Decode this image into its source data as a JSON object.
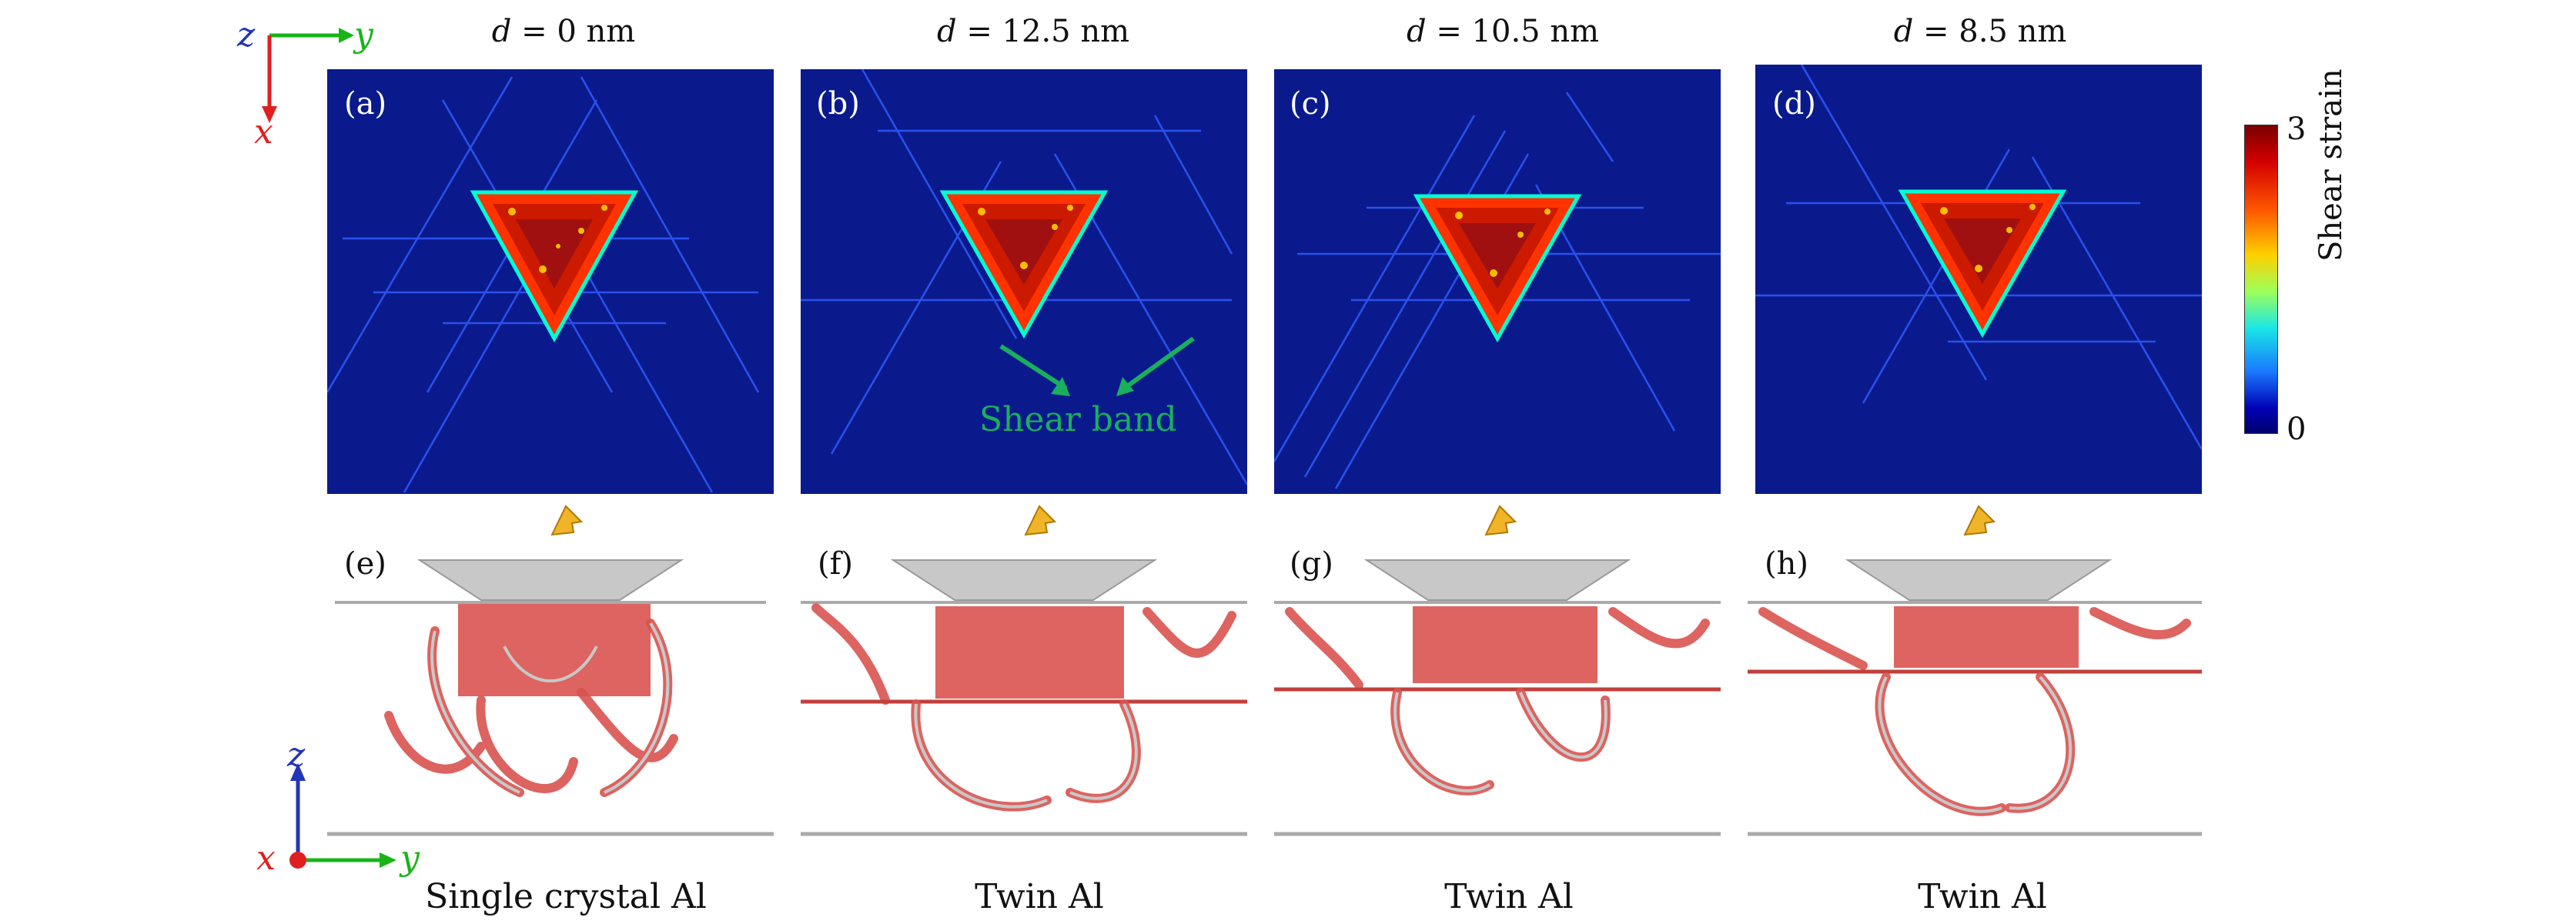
{
  "columns": [
    {
      "title_var": "d",
      "title_val": "= 0 nm",
      "top_label": "(a)",
      "bottom_label": "(e)",
      "caption": "Single crystal Al"
    },
    {
      "title_var": "d",
      "title_val": "= 12.5 nm",
      "top_label": "(b)",
      "bottom_label": "(f)",
      "caption": "Twin Al"
    },
    {
      "title_var": "d",
      "title_val": "= 10.5 nm",
      "top_label": "(c)",
      "bottom_label": "(g)",
      "caption": "Twin Al"
    },
    {
      "title_var": "d",
      "title_val": "= 8.5 nm",
      "top_label": "(d)",
      "bottom_label": "(h)",
      "caption": "Twin Al"
    }
  ],
  "annotation": {
    "shear_band": "Shear band"
  },
  "colorbar": {
    "label": "Shear strain",
    "max": "3",
    "min": "0"
  },
  "axes_top": {
    "vertical": "x",
    "horizontal": "y",
    "corner": "z"
  },
  "axes_bottom": {
    "vertical": "z",
    "horizontal": "y",
    "corner": "x"
  },
  "colors": {
    "map_background": "#0a1a8c",
    "dislocation_red": "#d9534f",
    "arrow_green": "#1aaf5d",
    "indenter_arrow": "#f0b428"
  }
}
